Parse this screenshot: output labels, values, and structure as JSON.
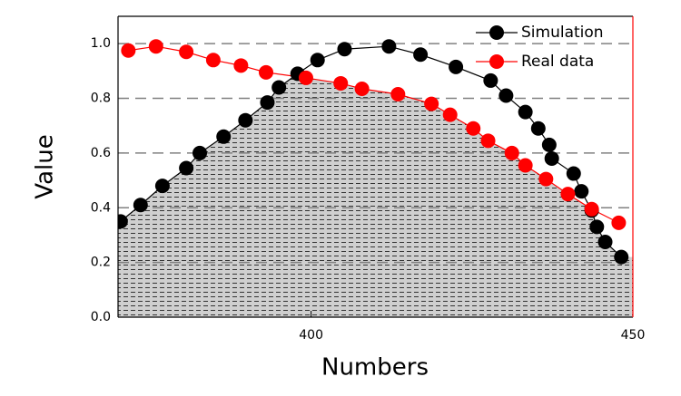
{
  "chart_data": {
    "type": "line",
    "xlabel": "Numbers",
    "ylabel": "Value",
    "xlim": [
      370,
      450
    ],
    "ylim": [
      0,
      1.1
    ],
    "xticks": [
      400,
      450
    ],
    "yticks": [
      {
        "value": 0,
        "label": "0.0"
      },
      {
        "value": 0.2,
        "label": "0.2"
      },
      {
        "value": 0.4,
        "label": "0.4"
      },
      {
        "value": 0.6,
        "label": "0.6"
      },
      {
        "value": 0.8,
        "label": "0.8"
      },
      {
        "value": 1.0,
        "label": "1.0"
      }
    ],
    "grid": true,
    "legend": "upper right",
    "fill_overlap": true,
    "series": [
      {
        "name": "Simulation",
        "color": "#000000",
        "x": [
          370.4,
          373.5,
          376.9,
          380.6,
          382.7,
          386.4,
          389.8,
          393.2,
          395.0,
          397.9,
          401.0,
          405.2,
          412.1,
          417.0,
          422.5,
          427.9,
          430.3,
          433.3,
          435.3,
          437.0,
          437.4,
          440.8,
          442.0,
          443.6,
          444.4,
          445.7,
          448.2
        ],
        "values": [
          0.35,
          0.41,
          0.48,
          0.545,
          0.6,
          0.66,
          0.72,
          0.785,
          0.84,
          0.89,
          0.94,
          0.98,
          0.99,
          0.96,
          0.915,
          0.865,
          0.81,
          0.75,
          0.69,
          0.63,
          0.58,
          0.525,
          0.46,
          0.39,
          0.33,
          0.275,
          0.22
        ]
      },
      {
        "name": "Real data",
        "color": "#ff0000",
        "x": [
          371.6,
          375.9,
          380.6,
          384.8,
          389.1,
          393.0,
          399.2,
          404.6,
          407.9,
          413.5,
          418.7,
          421.6,
          425.2,
          427.5,
          431.2,
          433.3,
          436.5,
          439.9,
          443.6,
          447.8
        ],
        "values": [
          0.975,
          0.99,
          0.97,
          0.94,
          0.92,
          0.895,
          0.875,
          0.855,
          0.835,
          0.815,
          0.78,
          0.74,
          0.69,
          0.645,
          0.6,
          0.555,
          0.505,
          0.45,
          0.395,
          0.345
        ]
      }
    ]
  }
}
